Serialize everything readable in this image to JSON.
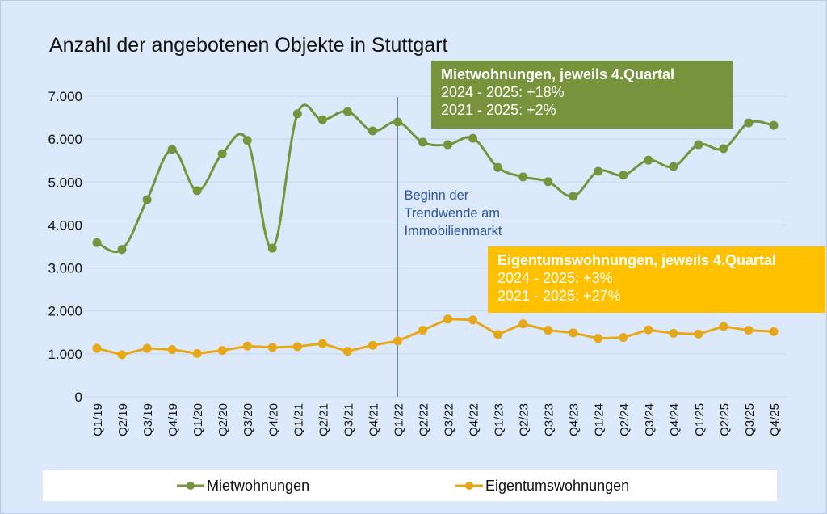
{
  "chart_data": {
    "type": "line",
    "title": "Anzahl der angebotenen Objekte in Stuttgart",
    "xlabel": "",
    "ylabel": "",
    "ylim": [
      0,
      7000
    ],
    "yticks": [
      0,
      1000,
      2000,
      3000,
      4000,
      5000,
      6000,
      7000
    ],
    "ytick_labels": [
      "0",
      "1.000",
      "2.000",
      "3.000",
      "4.000",
      "5.000",
      "6.000",
      "7.000"
    ],
    "grid": true,
    "legend_position": "bottom",
    "categories": [
      "Q1/19",
      "Q2/19",
      "Q3/19",
      "Q4/19",
      "Q1/20",
      "Q2/20",
      "Q3/20",
      "Q4/20",
      "Q1/21",
      "Q2/21",
      "Q3/21",
      "Q4/21",
      "Q1/22",
      "Q2/22",
      "Q3/22",
      "Q4/22",
      "Q1/23",
      "Q2/23",
      "Q3/23",
      "Q4/23",
      "Q1/24",
      "Q2/24",
      "Q3/24",
      "Q4/24",
      "Q1/25",
      "Q2/25",
      "Q3/25",
      "Q4/25"
    ],
    "series": [
      {
        "name": "Mietwohnungen",
        "color": "#77933c",
        "smooth": true,
        "values": [
          3590,
          3430,
          4590,
          5760,
          4800,
          5660,
          5970,
          3460,
          6590,
          6450,
          6640,
          6190,
          6400,
          5930,
          5870,
          6020,
          5340,
          5120,
          5010,
          4670,
          5250,
          5160,
          5510,
          5360,
          5870,
          5780,
          6380,
          6320
        ]
      },
      {
        "name": "Eigentumswohnungen",
        "color": "#e6a817",
        "smooth": false,
        "values": [
          1130,
          980,
          1130,
          1100,
          1010,
          1080,
          1180,
          1150,
          1170,
          1240,
          1060,
          1200,
          1300,
          1550,
          1810,
          1790,
          1450,
          1700,
          1550,
          1490,
          1360,
          1380,
          1560,
          1480,
          1460,
          1640,
          1550,
          1520
        ]
      }
    ],
    "annotations": [
      {
        "type": "vertical-line",
        "at_category": "Q1/22",
        "color": "#5b7fb5",
        "text_lines": [
          "Beginn der",
          "Trendwende am",
          "Immobilienmarkt"
        ]
      },
      {
        "type": "callout-box",
        "series": "Mietwohnungen",
        "background": "#77933c",
        "heading": "Mietwohnungen, jeweils 4.Quartal",
        "lines": [
          "2024 - 2025: +18%",
          "2021 - 2025: +2%"
        ]
      },
      {
        "type": "callout-box",
        "series": "Eigentumswohnungen",
        "background": "#ffc000",
        "heading": "Eigentumswohnungen, jeweils 4.Quartal",
        "lines": [
          "2024 - 2025: +3%",
          "2021 - 2025: +27%"
        ]
      }
    ]
  },
  "colors": {
    "background": "#dbe9fb",
    "gridline": "#c9d7ea",
    "legend_bg": "#ffffff"
  }
}
